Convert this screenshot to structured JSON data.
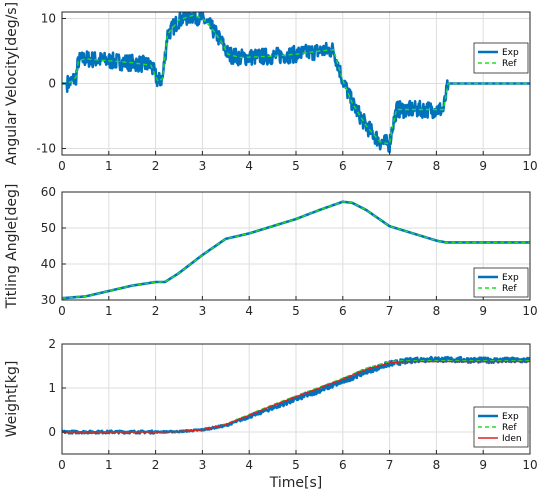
{
  "colors": {
    "exp": "#0072BD",
    "ref": "#22DD22",
    "iden": "#E02020",
    "axis": "#262626",
    "grid": "#DEDEDE"
  },
  "chart_data": [
    {
      "type": "line",
      "xlabel": "",
      "ylabel": "Angular Velocity[deg/s]",
      "xlim": [
        0,
        10
      ],
      "ylim": [
        -11,
        11
      ],
      "xticks": [
        "0",
        "1",
        "2",
        "3",
        "4",
        "5",
        "6",
        "7",
        "8",
        "9",
        "10"
      ],
      "yticks": [
        {
          "value": 10,
          "label": "10"
        },
        {
          "value": 0,
          "label": "0"
        },
        {
          "value": -10,
          "label": "-10"
        }
      ],
      "grid": true,
      "legend_position": "top-right",
      "series": [
        {
          "name": "Exp",
          "style": "solid",
          "noise": 1.3,
          "x": [
            0,
            0.1,
            0.2,
            0.3,
            0.35,
            0.5,
            1.0,
            1.5,
            1.9,
            2.05,
            2.15,
            2.25,
            2.5,
            2.8,
            3.0,
            3.2,
            3.4,
            3.55,
            3.8,
            4.5,
            5.0,
            5.5,
            5.8,
            6.0,
            6.2,
            6.5,
            6.8,
            7.0,
            7.05,
            7.15,
            7.5,
            8.0,
            8.15,
            8.25,
            9.0,
            10.0
          ],
          "y": [
            0,
            0,
            0.3,
            1,
            3.5,
            3.8,
            3.5,
            3.2,
            2.8,
            0.3,
            0.8,
            7.5,
            9.8,
            10.5,
            10,
            8.5,
            6.5,
            4.5,
            4.0,
            4.2,
            4.5,
            5.0,
            5.2,
            0.5,
            -3,
            -6.5,
            -9,
            -9.3,
            -7,
            -4,
            -4,
            -4,
            -4,
            0,
            0,
            0
          ]
        },
        {
          "name": "Ref",
          "style": "dashed",
          "noise": 0,
          "x": [
            0,
            0.1,
            0.2,
            0.3,
            0.35,
            0.5,
            1.0,
            1.5,
            1.9,
            2.05,
            2.15,
            2.25,
            2.5,
            2.8,
            3.0,
            3.2,
            3.4,
            3.55,
            3.8,
            4.5,
            5.0,
            5.5,
            5.8,
            6.0,
            6.2,
            6.5,
            6.8,
            7.0,
            7.05,
            7.15,
            7.5,
            8.0,
            8.15,
            8.25,
            9.0,
            10.0
          ],
          "y": [
            0,
            0,
            0.3,
            1,
            3.5,
            3.8,
            3.5,
            3.2,
            2.8,
            0.3,
            0.8,
            7.5,
            9.8,
            10.5,
            10,
            8.5,
            6.5,
            4.5,
            4.0,
            4.2,
            4.5,
            5.0,
            5.2,
            0.5,
            -3,
            -6.5,
            -9,
            -9.3,
            -7,
            -4,
            -4,
            -4,
            -4,
            0,
            0,
            0
          ]
        }
      ]
    },
    {
      "type": "line",
      "xlabel": "",
      "ylabel": "Titling Angle[deg]",
      "xlim": [
        0,
        10
      ],
      "ylim": [
        30,
        60
      ],
      "xticks": [
        "0",
        "1",
        "2",
        "3",
        "4",
        "5",
        "6",
        "7",
        "8",
        "9",
        "10"
      ],
      "yticks": [
        {
          "value": 60,
          "label": "60"
        },
        {
          "value": 50,
          "label": "50"
        },
        {
          "value": 40,
          "label": "40"
        },
        {
          "value": 30,
          "label": "30"
        }
      ],
      "grid": true,
      "legend_position": "bottom-right",
      "series": [
        {
          "name": "Exp",
          "style": "solid",
          "noise": 0,
          "x": [
            0,
            0.5,
            1.0,
            1.5,
            2.0,
            2.2,
            2.5,
            3.0,
            3.5,
            4.0,
            4.5,
            5.0,
            5.5,
            6.0,
            6.2,
            6.5,
            7.0,
            7.5,
            8.0,
            8.2,
            9.0,
            10.0
          ],
          "y": [
            30.5,
            31,
            32.5,
            34,
            35,
            35,
            37.5,
            42.5,
            47,
            48.5,
            50.5,
            52.5,
            55,
            57.3,
            57,
            55,
            50.5,
            48.5,
            46.5,
            46,
            46,
            46
          ]
        },
        {
          "name": "Ref",
          "style": "dashed",
          "noise": 0,
          "x": [
            0,
            0.5,
            1.0,
            1.5,
            2.0,
            2.2,
            2.5,
            3.0,
            3.5,
            4.0,
            4.5,
            5.0,
            5.5,
            6.0,
            6.2,
            6.5,
            7.0,
            7.5,
            8.0,
            8.2,
            9.0,
            10.0
          ],
          "y": [
            30.5,
            31,
            32.5,
            34,
            35,
            35,
            37.5,
            42.5,
            47,
            48.5,
            50.5,
            52.5,
            55,
            57.3,
            57,
            55,
            50.5,
            48.5,
            46.5,
            46,
            46,
            46
          ]
        }
      ]
    },
    {
      "type": "line",
      "xlabel": "Time[s]",
      "ylabel": "Weight[kg]",
      "xlim": [
        0,
        10
      ],
      "ylim": [
        -0.5,
        2
      ],
      "xticks": [
        "0",
        "1",
        "2",
        "3",
        "4",
        "5",
        "6",
        "7",
        "8",
        "9",
        "10"
      ],
      "yticks": [
        {
          "value": 2,
          "label": "2"
        },
        {
          "value": 1,
          "label": "1"
        },
        {
          "value": 0,
          "label": "0"
        }
      ],
      "grid": true,
      "legend_position": "bottom-right",
      "series": [
        {
          "name": "Exp",
          "style": "solid",
          "noise": 0.06,
          "x": [
            0,
            1,
            2,
            2.5,
            3,
            3.5,
            4,
            4.5,
            5,
            5.5,
            6,
            6.5,
            7,
            7.3,
            7.6,
            8,
            9,
            10
          ],
          "y": [
            0,
            0,
            0,
            0.01,
            0.05,
            0.15,
            0.35,
            0.55,
            0.75,
            0.95,
            1.15,
            1.38,
            1.55,
            1.6,
            1.65,
            1.65,
            1.63,
            1.63
          ]
        },
        {
          "name": "Ref",
          "style": "dashed",
          "noise": 0,
          "x": [
            0,
            1,
            2,
            2.5,
            3,
            3.5,
            4,
            4.5,
            5,
            5.5,
            6,
            6.5,
            7,
            7.3,
            7.6,
            8,
            9,
            10
          ],
          "y": [
            0,
            0,
            0,
            0.01,
            0.05,
            0.18,
            0.4,
            0.62,
            0.82,
            1.02,
            1.22,
            1.45,
            1.6,
            1.62,
            1.62,
            1.62,
            1.62,
            1.62
          ]
        },
        {
          "name": "Iden",
          "style": "solid",
          "noise": 0,
          "x": [
            0,
            1,
            2,
            2.5,
            3,
            3.5,
            4,
            4.5,
            5,
            5.5,
            6,
            6.5,
            7,
            7.3,
            7.6,
            8,
            9,
            10
          ],
          "y": [
            0,
            0,
            0,
            0.01,
            0.05,
            0.17,
            0.38,
            0.6,
            0.8,
            1.0,
            1.2,
            1.42,
            1.57,
            1.6,
            1.6,
            1.6,
            1.6,
            1.6
          ]
        }
      ]
    }
  ]
}
